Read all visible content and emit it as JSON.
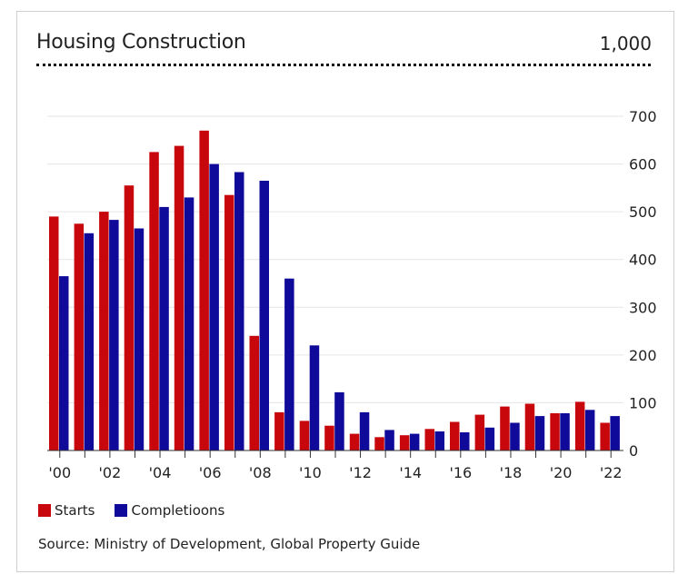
{
  "title": "Housing Construction",
  "unit_label": "1,000",
  "source": "Source: Ministry of Development, Global Property Guide",
  "colors": {
    "starts": "#c8070c",
    "completions": "#0f0a99",
    "grid": "#e6e6e6",
    "axis": "#333333"
  },
  "chart_data": {
    "type": "bar",
    "title": "Housing Construction",
    "xlabel": "",
    "ylabel": "",
    "ylim": [
      0,
      700
    ],
    "yticks": [
      0,
      100,
      200,
      300,
      400,
      500,
      600,
      700
    ],
    "grid": true,
    "legend_position": "bottom-left",
    "categories": [
      "2000",
      "2001",
      "2002",
      "2003",
      "2004",
      "2005",
      "2006",
      "2007",
      "2008",
      "2009",
      "2010",
      "2011",
      "2012",
      "2013",
      "2014",
      "2015",
      "2016",
      "2017",
      "2018",
      "2019",
      "2020",
      "2021",
      "2022"
    ],
    "x_tick_labels": [
      "'00",
      "'02",
      "'04",
      "'06",
      "'08",
      "'10",
      "'12",
      "'14",
      "'16",
      "'18",
      "'20",
      "'22"
    ],
    "series": [
      {
        "name": "Starts",
        "values": [
          490,
          475,
          500,
          555,
          625,
          638,
          670,
          535,
          240,
          80,
          62,
          52,
          35,
          28,
          32,
          45,
          60,
          75,
          92,
          98,
          78,
          102,
          58
        ]
      },
      {
        "name": "Completioons",
        "values": [
          365,
          455,
          483,
          465,
          510,
          530,
          600,
          583,
          565,
          360,
          220,
          122,
          80,
          43,
          35,
          40,
          38,
          48,
          58,
          72,
          78,
          85,
          72
        ]
      }
    ]
  }
}
